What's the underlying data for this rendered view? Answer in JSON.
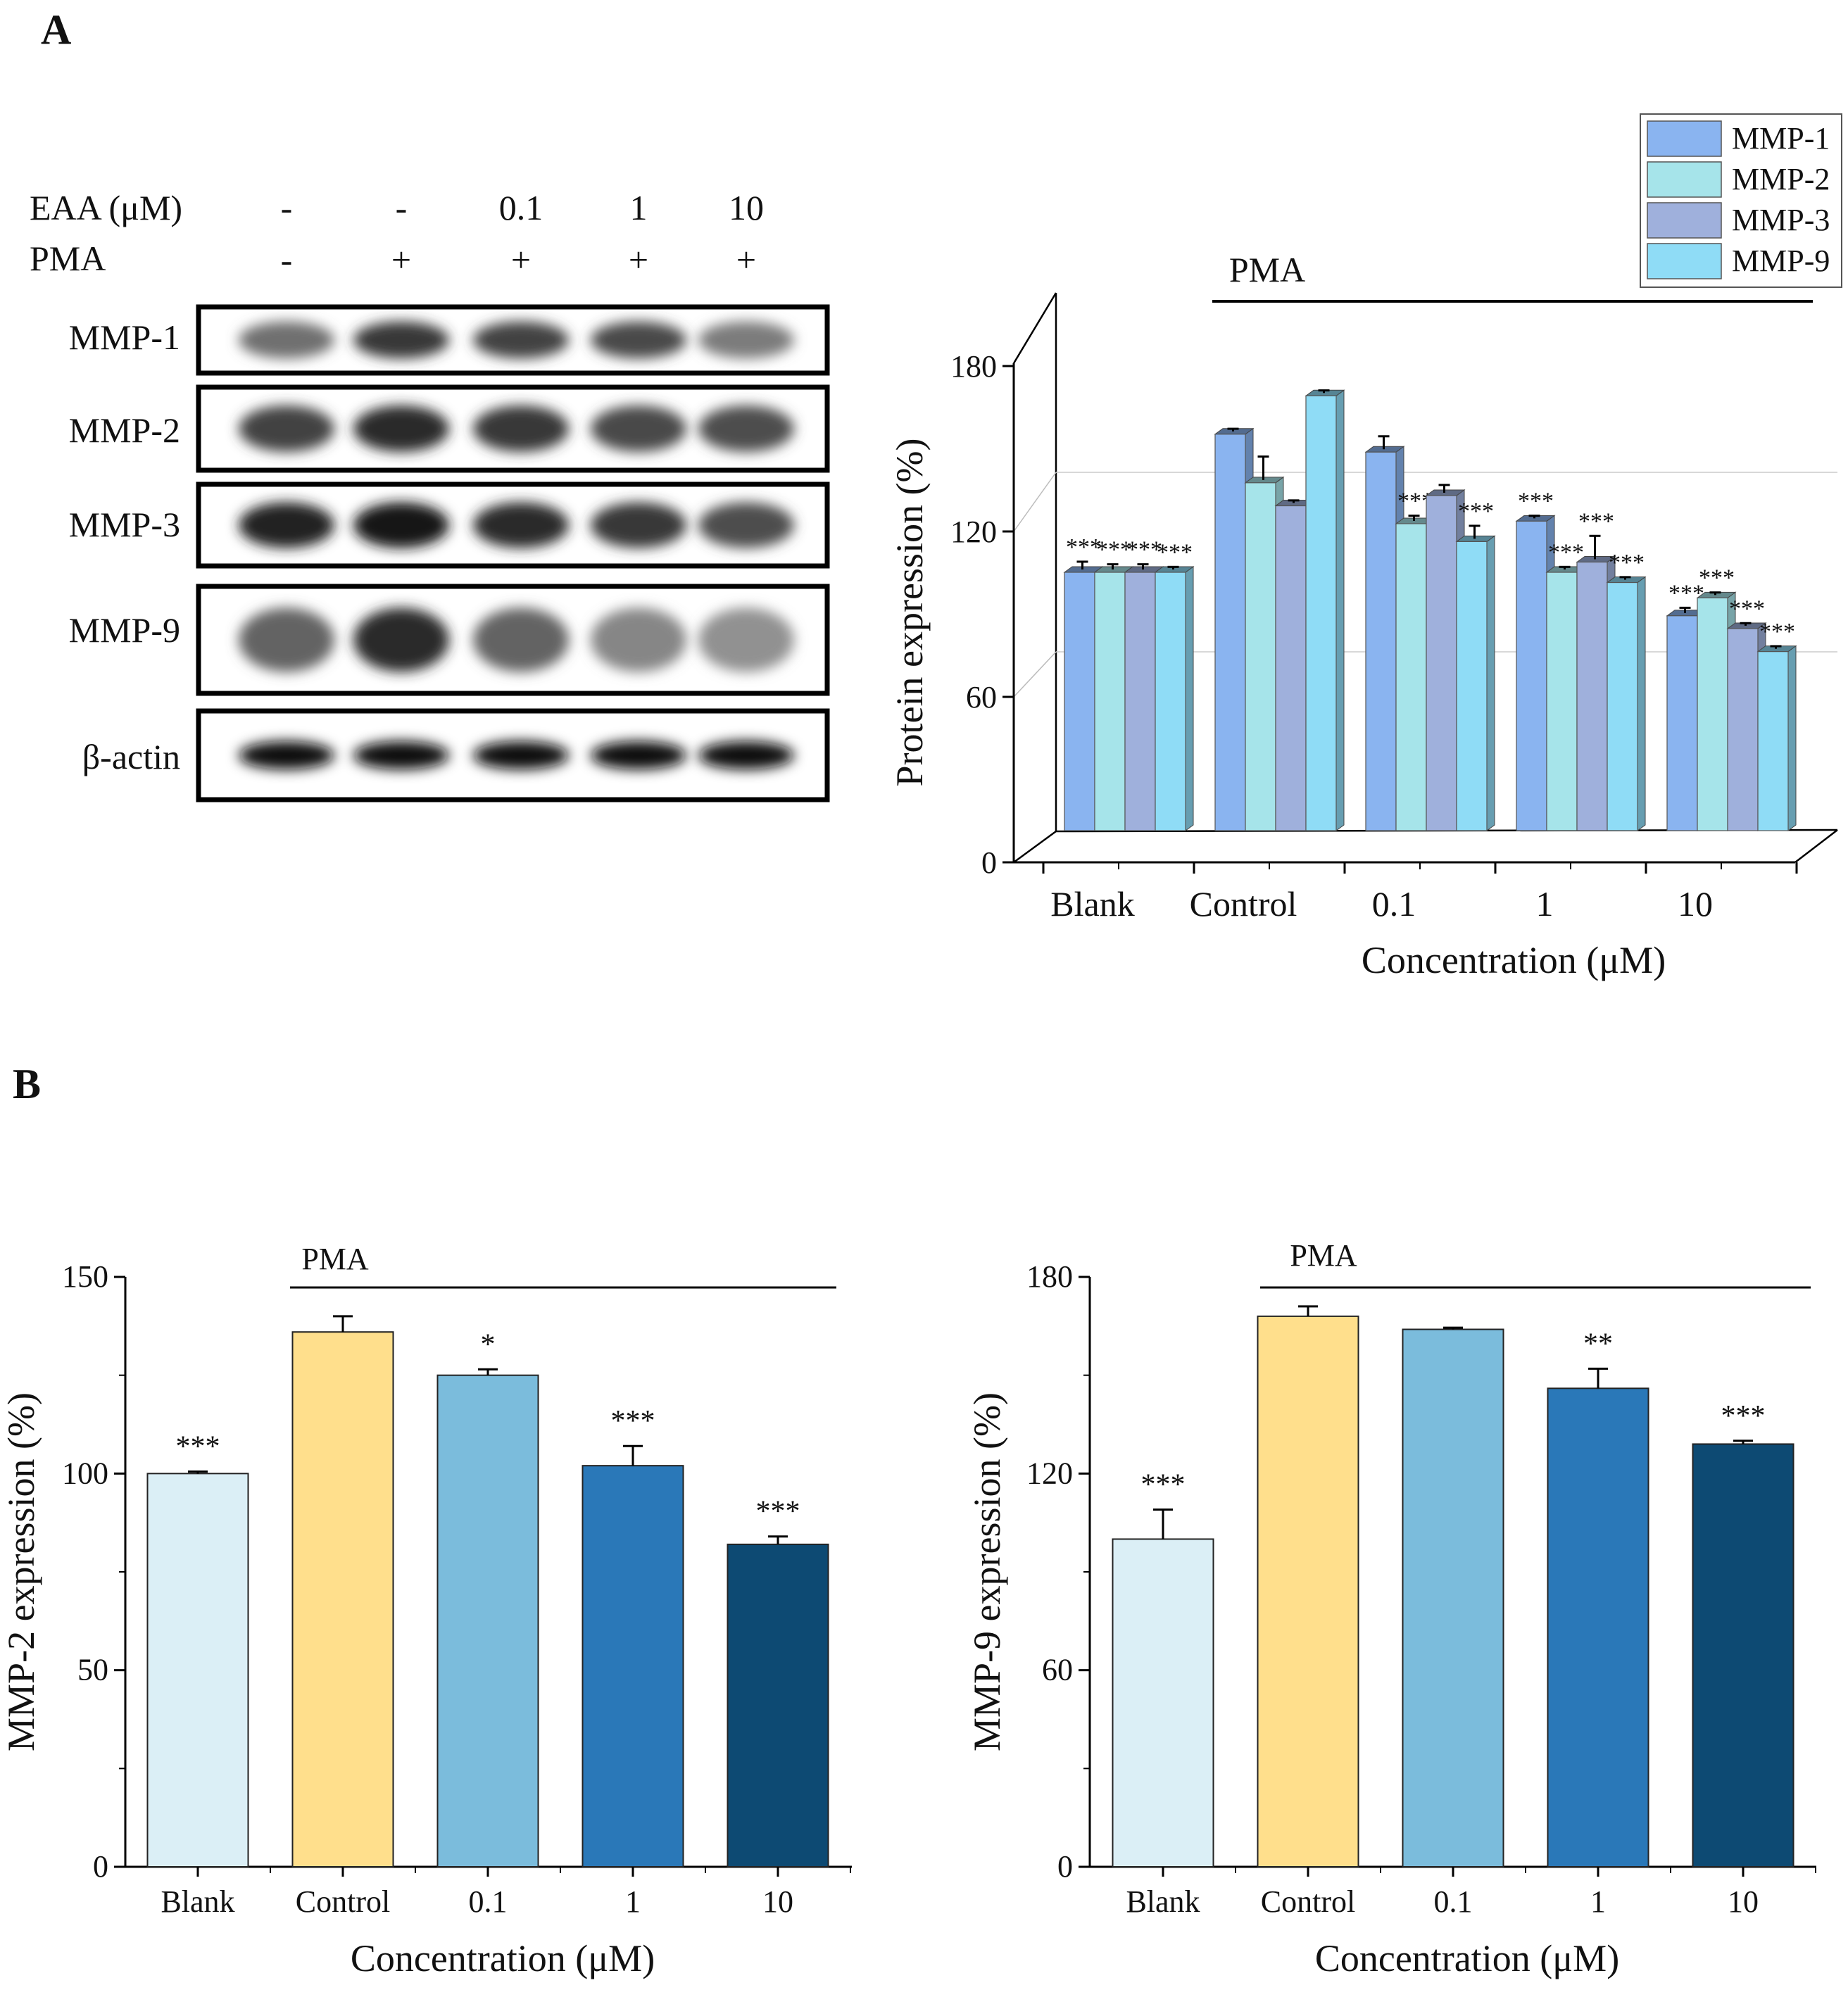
{
  "panel_a_label": "A",
  "panel_b_label": "B",
  "western_blot": {
    "treatment_rows": [
      {
        "label": "EAA (μM)",
        "values": [
          "-",
          "-",
          "0.1",
          "1",
          "10"
        ]
      },
      {
        "label": "PMA",
        "values": [
          "-",
          "+",
          "+",
          "+",
          "+"
        ]
      }
    ],
    "proteins": [
      "MMP-1",
      "MMP-2",
      "MMP-3",
      "MMP-9",
      "β-actin"
    ],
    "band_intensity": [
      [
        0.55,
        0.8,
        0.75,
        0.72,
        0.5
      ],
      [
        0.75,
        0.85,
        0.8,
        0.72,
        0.7
      ],
      [
        0.9,
        0.95,
        0.85,
        0.8,
        0.7
      ],
      [
        0.6,
        0.85,
        0.6,
        0.45,
        0.4
      ],
      [
        1.0,
        1.0,
        1.0,
        1.0,
        1.0
      ]
    ]
  },
  "colors": {
    "MMP-1": "#8ab4f0",
    "MMP-2": "#a6e4ea",
    "MMP-3": "#9fb0dc",
    "MMP-9": "#8fdcf6",
    "blank": "#dbeff6",
    "control": "#ffdf8c",
    "c01": "#7bbcdc",
    "c1": "#2a78b8",
    "c10": "#0d4a73"
  },
  "chart_data": [
    {
      "type": "bar",
      "title": "",
      "bracket_label": "PMA",
      "xlabel": "Concentration (μM)",
      "ylabel": "Protein expression (%)",
      "ylim": [
        0,
        180
      ],
      "yticks": [
        "0",
        "60",
        "120",
        "180"
      ],
      "categories": [
        "Blank",
        "Control",
        "0.1",
        "1",
        "10"
      ],
      "legend": [
        "MMP-1",
        "MMP-2",
        "MMP-3",
        "MMP-9"
      ],
      "legend_position": "top-right",
      "series": [
        {
          "name": "MMP-1",
          "values": [
            101,
            155,
            148,
            121,
            84
          ],
          "errors": [
            3,
            1,
            5,
            1,
            2
          ],
          "sig": [
            "***",
            "",
            "",
            "***",
            "***"
          ]
        },
        {
          "name": "MMP-2",
          "values": [
            101,
            136,
            120,
            101,
            91
          ],
          "errors": [
            2,
            9,
            2,
            1,
            1
          ],
          "sig": [
            "***",
            "",
            "***",
            "***",
            "***"
          ]
        },
        {
          "name": "MMP-3",
          "values": [
            101,
            127,
            131,
            105,
            79
          ],
          "errors": [
            2,
            1,
            3,
            9,
            1
          ],
          "sig": [
            "***",
            "",
            "",
            "***",
            "***"
          ]
        },
        {
          "name": "MMP-9",
          "values": [
            101,
            170,
            113,
            97,
            70
          ],
          "errors": [
            1,
            1,
            5,
            1,
            1
          ],
          "sig": [
            "***",
            "",
            "***",
            "***",
            "***"
          ]
        }
      ]
    },
    {
      "type": "bar",
      "title": "",
      "bracket_label": "PMA",
      "xlabel": "Concentration (μM)",
      "ylabel": "MMP-2 expression (%)",
      "ylim": [
        0,
        150
      ],
      "yticks": [
        "0",
        "50",
        "100",
        "150"
      ],
      "categories": [
        "Blank",
        "Control",
        "0.1",
        "1",
        "10"
      ],
      "values": [
        100,
        136,
        125,
        102,
        82
      ],
      "errors": [
        0.5,
        4,
        1.5,
        5,
        2
      ],
      "sig": [
        "***",
        "",
        "*",
        "***",
        "***"
      ]
    },
    {
      "type": "bar",
      "title": "",
      "bracket_label": "PMA",
      "xlabel": "Concentration (μM)",
      "ylabel": "MMP-9 expression (%)",
      "ylim": [
        0,
        180
      ],
      "yticks": [
        "0",
        "60",
        "120",
        "180"
      ],
      "categories": [
        "Blank",
        "Control",
        "0.1",
        "1",
        "10"
      ],
      "values": [
        100,
        168,
        164,
        146,
        129
      ],
      "errors": [
        9,
        3,
        0.5,
        6,
        1
      ],
      "sig": [
        "***",
        "",
        "",
        "**",
        "***"
      ]
    }
  ]
}
